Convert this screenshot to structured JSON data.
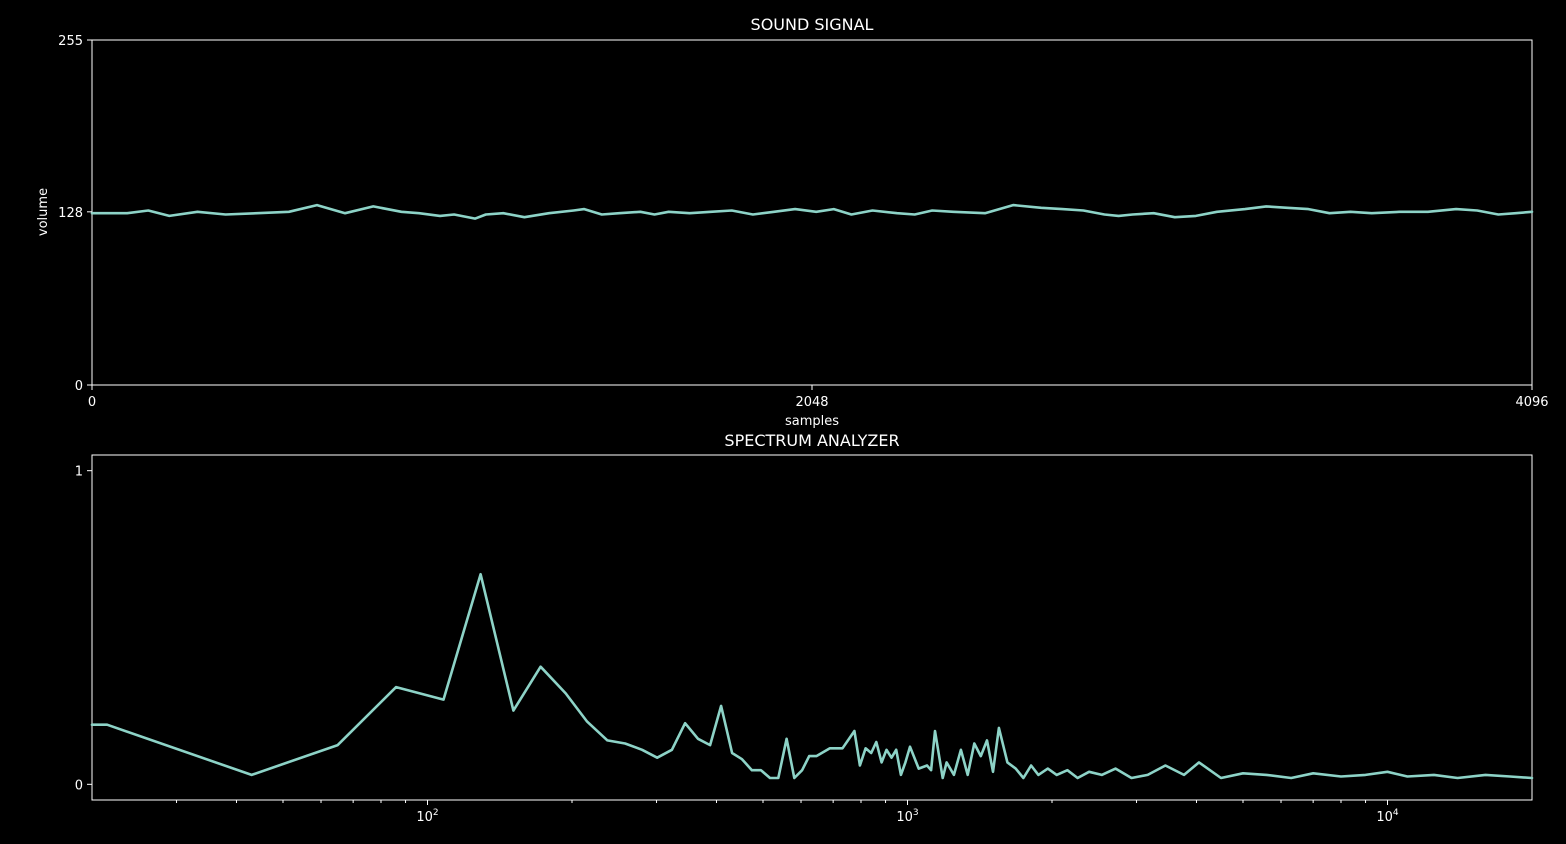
{
  "colors": {
    "background": "#000000",
    "foreground": "#ffffff",
    "line": "#8dd3c7"
  },
  "chart_data": [
    {
      "type": "line",
      "title": "SOUND SIGNAL",
      "xlabel": "samples",
      "ylabel": "volume",
      "xlim": [
        0,
        4096
      ],
      "ylim": [
        0,
        255
      ],
      "xticks": [
        0,
        2048,
        4096
      ],
      "yticks": [
        0,
        128,
        255
      ],
      "xticklabels": [
        "0",
        "2048",
        "4096"
      ],
      "yticklabels": [
        "0",
        "128",
        "255"
      ],
      "x_log": false,
      "grid": false,
      "series": [
        {
          "x": [
            0,
            100,
            160,
            220,
            300,
            380,
            470,
            560,
            640,
            720,
            800,
            880,
            930,
            990,
            1030,
            1090,
            1120,
            1170,
            1230,
            1300,
            1370,
            1400,
            1450,
            1500,
            1560,
            1600,
            1640,
            1700,
            1760,
            1820,
            1880,
            1940,
            2000,
            2060,
            2110,
            2160,
            2220,
            2290,
            2340,
            2390,
            2450,
            2540,
            2620,
            2700,
            2760,
            2820,
            2880,
            2920,
            2960,
            3020,
            3080,
            3140,
            3200,
            3280,
            3340,
            3400,
            3460,
            3520,
            3580,
            3640,
            3720,
            3800,
            3880,
            3940,
            4000,
            4050,
            4096
          ],
          "y": [
            127,
            127,
            129,
            125,
            128,
            126,
            127,
            128,
            133,
            127,
            132,
            128,
            127,
            125,
            126,
            123,
            126,
            127,
            124,
            127,
            129,
            130,
            126,
            127,
            128,
            126,
            128,
            127,
            128,
            129,
            126,
            128,
            130,
            128,
            130,
            126,
            129,
            127,
            126,
            129,
            128,
            127,
            133,
            131,
            130,
            129,
            126,
            125,
            126,
            127,
            124,
            125,
            128,
            130,
            132,
            131,
            130,
            127,
            128,
            127,
            128,
            128,
            130,
            129,
            126,
            127,
            128
          ]
        }
      ]
    },
    {
      "type": "line",
      "title": "SPECTRUM ANALYZER",
      "xlabel": "",
      "ylabel": "",
      "xlim": [
        20,
        20000
      ],
      "ylim": [
        -0.05,
        1.05
      ],
      "x_log": true,
      "xticks": [
        100,
        1000,
        10000
      ],
      "xticklabels": [
        "10^2",
        "10^3",
        "10^4"
      ],
      "yticks": [
        0,
        1
      ],
      "yticklabels": [
        "0",
        "1"
      ],
      "grid": false,
      "series": [
        {
          "x": [
            20,
            21.5,
            43,
            65,
            86,
            108,
            129,
            151,
            172,
            194,
            215,
            237,
            258,
            280,
            301,
            323,
            344,
            366,
            388,
            409,
            431,
            452,
            474,
            495,
            517,
            538,
            560,
            581,
            603,
            624,
            646,
            689,
            732,
            775,
            796,
            818,
            840,
            861,
            883,
            904,
            926,
            947,
            969,
            990,
            1012,
            1055,
            1098,
            1120,
            1141,
            1184,
            1206,
            1249,
            1292,
            1335,
            1378,
            1421,
            1464,
            1507,
            1550,
            1615,
            1680,
            1744,
            1809,
            1874,
            1960,
            2046,
            2153,
            2261,
            2390,
            2540,
            2713,
            2928,
            3165,
            3445,
            3768,
            4048,
            4500,
            5000,
            5600,
            6300,
            7000,
            8000,
            9000,
            10000,
            11000,
            12500,
            14000,
            16000,
            18000,
            20000
          ],
          "y": [
            0.19,
            0.19,
            0.03,
            0.125,
            0.31,
            0.27,
            0.67,
            0.235,
            0.375,
            0.29,
            0.2,
            0.14,
            0.13,
            0.11,
            0.085,
            0.11,
            0.195,
            0.145,
            0.125,
            0.25,
            0.1,
            0.08,
            0.045,
            0.045,
            0.02,
            0.02,
            0.145,
            0.02,
            0.045,
            0.09,
            0.09,
            0.115,
            0.115,
            0.17,
            0.06,
            0.115,
            0.1,
            0.135,
            0.07,
            0.11,
            0.085,
            0.11,
            0.03,
            0.07,
            0.12,
            0.05,
            0.06,
            0.045,
            0.17,
            0.02,
            0.07,
            0.03,
            0.11,
            0.03,
            0.13,
            0.09,
            0.14,
            0.04,
            0.18,
            0.07,
            0.05,
            0.02,
            0.06,
            0.03,
            0.05,
            0.03,
            0.045,
            0.02,
            0.04,
            0.03,
            0.05,
            0.02,
            0.03,
            0.06,
            0.03,
            0.07,
            0.02,
            0.035,
            0.03,
            0.02,
            0.035,
            0.025,
            0.03,
            0.04,
            0.025,
            0.03,
            0.02,
            0.03,
            0.025,
            0.02
          ]
        }
      ]
    }
  ]
}
